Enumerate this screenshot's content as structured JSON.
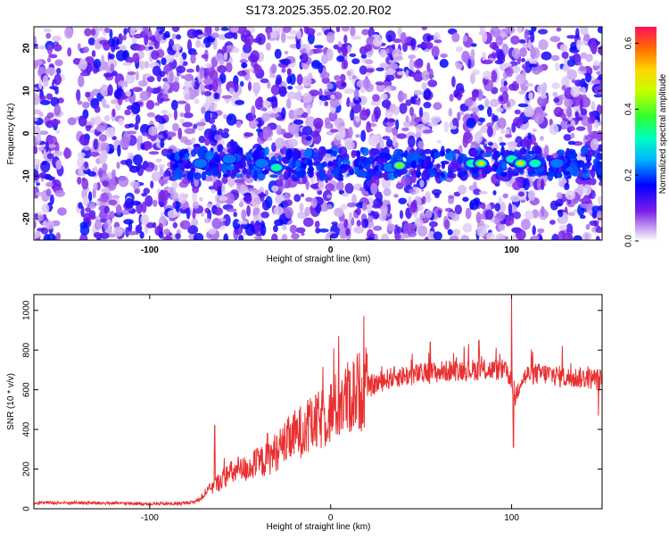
{
  "title": "S173.2025.355.02.20.R02",
  "chart_data": [
    {
      "type": "heatmap",
      "xlabel": "Height of straight line (km)",
      "ylabel": "Frequency (Hz)",
      "xlim": [
        -164,
        150
      ],
      "ylim": [
        -25,
        25
      ],
      "xticks": [
        -100,
        0,
        100
      ],
      "yticks": [
        -20,
        -10,
        0,
        10,
        20
      ],
      "colorbar": {
        "label": "Normalized spectral amplitude",
        "range": [
          0.0,
          0.65
        ],
        "ticks": [
          0.0,
          0.2,
          0.4,
          0.6
        ]
      },
      "band_frequency_hz": -7,
      "hotspots": [
        {
          "x": -72,
          "y": -7,
          "amp": 0.25
        },
        {
          "x": -56,
          "y": -6,
          "amp": 0.2
        },
        {
          "x": -38,
          "y": -7,
          "amp": 0.25
        },
        {
          "x": -30,
          "y": -8,
          "amp": 0.3
        },
        {
          "x": 33,
          "y": -8,
          "amp": 0.25
        },
        {
          "x": 38,
          "y": -7.5,
          "amp": 0.4
        },
        {
          "x": 78,
          "y": -7,
          "amp": 0.3
        },
        {
          "x": 83,
          "y": -7,
          "amp": 0.55
        },
        {
          "x": 100,
          "y": -6,
          "amp": 0.3
        },
        {
          "x": 105,
          "y": -7,
          "amp": 0.55
        },
        {
          "x": 113,
          "y": -7,
          "amp": 0.3
        },
        {
          "x": 125,
          "y": -7,
          "amp": 0.25
        }
      ]
    },
    {
      "type": "line",
      "xlabel": "Height of straight line (km)",
      "ylabel": "SNR (10 * v/v)",
      "xlim": [
        -164,
        150
      ],
      "ylim": [
        0,
        1080
      ],
      "xticks": [
        -100,
        0,
        100
      ],
      "yticks": [
        0,
        200,
        400,
        600,
        800,
        1000
      ],
      "series": [
        {
          "color": "#e83030",
          "x": [
            -164,
            -140,
            -120,
            -100,
            -85,
            -75,
            -70,
            -65,
            -60,
            -55,
            -50,
            -45,
            -40,
            -35,
            -30,
            -25,
            -20,
            -15,
            -10,
            -5,
            0,
            5,
            10,
            15,
            20,
            25,
            30,
            35,
            40,
            50,
            60,
            70,
            80,
            90,
            95,
            100,
            102,
            105,
            110,
            120,
            130,
            140,
            150
          ],
          "y": [
            30,
            30,
            28,
            25,
            25,
            35,
            70,
            110,
            150,
            180,
            190,
            210,
            230,
            250,
            290,
            330,
            370,
            400,
            420,
            450,
            490,
            530,
            560,
            590,
            610,
            630,
            650,
            665,
            670,
            680,
            690,
            700,
            700,
            700,
            700,
            660,
            560,
            650,
            680,
            680,
            660,
            660,
            650
          ]
        }
      ],
      "spikes": [
        {
          "x": -64,
          "y": 420
        },
        {
          "x": -51,
          "y": 260
        },
        {
          "x": -35,
          "y": 380
        },
        {
          "x": -12,
          "y": 520
        },
        {
          "x": 20,
          "y": 780
        },
        {
          "x": 55,
          "y": 840
        },
        {
          "x": 82,
          "y": 850
        },
        {
          "x": 100,
          "y": 1080
        },
        {
          "x": 101,
          "y": 310
        },
        {
          "x": 128,
          "y": 820
        },
        {
          "x": 148,
          "y": 470
        }
      ]
    }
  ]
}
